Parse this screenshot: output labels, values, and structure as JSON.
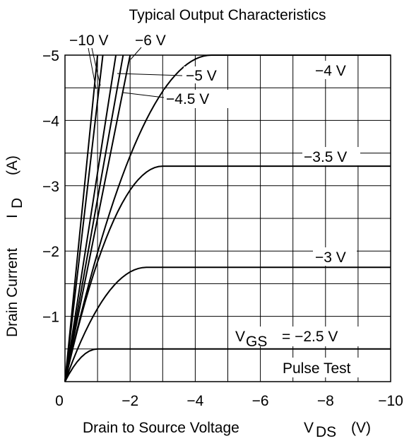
{
  "chart_data": {
    "type": "line",
    "title": "Typical Output Characteristics",
    "xlabel": {
      "text": "Drain to Source Voltage",
      "symbol": "V",
      "subscript": "DS",
      "unit": "(V)"
    },
    "ylabel": {
      "text": "Drain Current",
      "symbol": "I",
      "subscript": "D",
      "unit": "(A)"
    },
    "origin_label": "0",
    "xlim": [
      0,
      -10
    ],
    "ylim": [
      0,
      -5
    ],
    "xticks": [
      {
        "value": -2,
        "label": "−2"
      },
      {
        "value": -4,
        "label": "−4"
      },
      {
        "value": -6,
        "label": "−6"
      },
      {
        "value": -8,
        "label": "−8"
      },
      {
        "value": -10,
        "label": "−10"
      }
    ],
    "yticks": [
      {
        "value": -1,
        "label": "−1"
      },
      {
        "value": -2,
        "label": "−2"
      },
      {
        "value": -3,
        "label": "−3"
      },
      {
        "value": -4,
        "label": "−4"
      },
      {
        "value": -5,
        "label": "−5"
      }
    ],
    "grid": true,
    "grid_minor_y_step": -0.5,
    "series": [
      {
        "name": "V_GS = −2.5 V",
        "vgs": -2.5,
        "k": 0.5,
        "vsat": -1.0
      },
      {
        "name": "−3 V",
        "vgs": -3,
        "k": 1.75,
        "vsat": -2.5
      },
      {
        "name": "−3.5 V",
        "vgs": -3.5,
        "k": 3.3,
        "vsat": -3.0
      },
      {
        "name": "−4 V",
        "vgs": -4,
        "k": 5.0,
        "vsat": -4.5
      },
      {
        "name": "−4.5 V",
        "vgs": -4.5,
        "slope": 2.5
      },
      {
        "name": "−5 V",
        "vgs": -5,
        "slope": 2.8
      },
      {
        "name": "−6 V",
        "vgs": -6,
        "slope": 3.2
      },
      {
        "name": "−10 V",
        "vgs": -10,
        "slope": 4.3
      },
      {
        "name": "−10 V (line 2)",
        "vgs": -10,
        "slope": 5.0
      }
    ],
    "labels": {
      "vgs_prefix": "V",
      "vgs_sub": "GS",
      "vgs_value": "= −2.5 V",
      "l3": "−3 V",
      "l35": "−3.5 V",
      "l4": "−4 V",
      "l45": "−4.5 V",
      "l5": "−5 V",
      "l6": "−6 V",
      "l10": "−10 V"
    },
    "annotation": "Pulse Test"
  }
}
